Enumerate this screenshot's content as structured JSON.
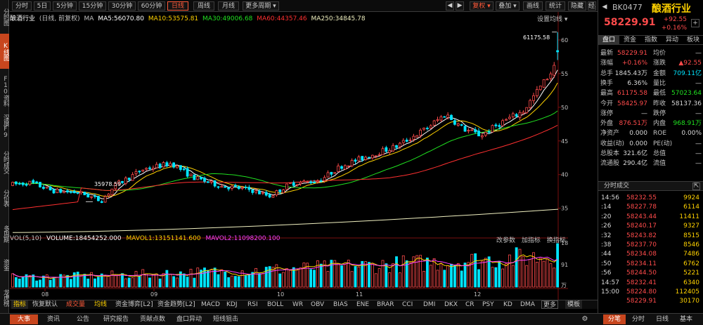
{
  "left_tabs": [
    {
      "label": "分时图",
      "active": false
    },
    {
      "label": "K线图",
      "active": true
    },
    {
      "label": "F10资料",
      "active": false
    },
    {
      "label": "深度F9",
      "active": false
    },
    {
      "label": "分时成交",
      "active": false
    },
    {
      "label": "分价表",
      "active": false
    },
    {
      "label": "多周期",
      "active": false
    },
    {
      "label": "资金",
      "active": false
    },
    {
      "label": "龙虎榜",
      "active": false
    }
  ],
  "toolbar": {
    "periods": [
      "分时",
      "5日",
      "5分钟",
      "15分钟",
      "30分钟",
      "60分钟",
      "日线",
      "周线",
      "月线",
      "更多周期 ▾"
    ],
    "active_period": "日线",
    "right_buttons": [
      "复权 ▾",
      "叠加 ▾",
      "画线",
      "统计",
      "隐藏",
      "经典"
    ]
  },
  "legend": {
    "name": "酿酒行业",
    "mode": "(日线, 前复权)",
    "ma_tag": "MA",
    "ma5": "MA5:56070.80",
    "ma10": "MA10:53575.81",
    "ma30": "MA30:49006.68",
    "ma60": "MA60:44357.46",
    "ma250": "MA250:34845.78",
    "settings": "设置均线 ▾"
  },
  "annotations": {
    "high": "61175.58",
    "low": "35978.59"
  },
  "volume_legend": {
    "label": "VOL(5,10)",
    "volume": "VOLUME:18454252.000",
    "mavol1": "MAVOL1:13151141.600",
    "mavol2": "MAVOL2:11098200.100",
    "tools": [
      "改参数",
      "加指标",
      "换指标"
    ]
  },
  "indicators": [
    "指标",
    "恢复默认",
    "成交量",
    "均线",
    "资金博弈[L2]",
    "资金趋势[L2]",
    "MACD",
    "KDJ",
    "RSI",
    "BOLL",
    "WR",
    "OBV",
    "BIAS",
    "ENE",
    "BRAR",
    "CCI",
    "DMI",
    "DKX",
    "CR",
    "PSY",
    "KD",
    "DMA",
    "更多",
    "模板"
  ],
  "bottom_tabs": [
    "大事",
    "资讯",
    "公告",
    "研究报告",
    "贡献点数",
    "盘口异动",
    "短线狙击"
  ],
  "right_bottom_tabs": [
    "分笔",
    "分时",
    "日线",
    "基本"
  ],
  "quote": {
    "code": "BK0477",
    "name": "酿酒行业",
    "price": "58229.91",
    "change": "+92.55",
    "change_pct": "+0.16%",
    "tabs": [
      "盘口",
      "资金",
      "指数",
      "异动",
      "板块"
    ],
    "rows": [
      [
        {
          "l": "最新",
          "v": "58229.91",
          "c": "up"
        },
        {
          "l": "均价",
          "v": "—",
          "c": "wh"
        }
      ],
      [
        {
          "l": "涨幅",
          "v": "+0.16%",
          "c": "up"
        },
        {
          "l": "涨跌",
          "v": "▲92.55",
          "c": "up"
        }
      ],
      [
        {
          "l": "总手",
          "v": "1845.43万",
          "c": "wh"
        },
        {
          "l": "金额",
          "v": "709.11亿",
          "c": "cy"
        }
      ],
      [
        {
          "l": "换手",
          "v": "6.36%",
          "c": "wh"
        },
        {
          "l": "量比",
          "v": "—",
          "c": "wh"
        }
      ],
      [
        {
          "l": "最高",
          "v": "61175.58",
          "c": "up"
        },
        {
          "l": "最低",
          "v": "57023.64",
          "c": "gr"
        }
      ],
      [
        {
          "l": "今开",
          "v": "58425.97",
          "c": "up"
        },
        {
          "l": "昨收",
          "v": "58137.36",
          "c": "wh"
        }
      ],
      [
        {
          "l": "涨停",
          "v": "—",
          "c": "wh"
        },
        {
          "l": "跌停",
          "v": "—",
          "c": "wh"
        }
      ],
      [
        {
          "l": "外盘",
          "v": "876.51万",
          "c": "up"
        },
        {
          "l": "内盘",
          "v": "968.91万",
          "c": "gr"
        }
      ],
      [
        {
          "l": "净资产",
          "v": "0.000",
          "c": "wh"
        },
        {
          "l": "ROE",
          "v": "0.00%",
          "c": "wh"
        }
      ],
      [
        {
          "l": "收益(动)",
          "v": "0.000",
          "c": "wh"
        },
        {
          "l": "PE(动)",
          "v": "—",
          "c": "wh"
        }
      ],
      [
        {
          "l": "总股本",
          "v": "321.6亿",
          "c": "wh"
        },
        {
          "l": "总值",
          "v": "—",
          "c": "wh"
        }
      ],
      [
        {
          "l": "流通股",
          "v": "290.4亿",
          "c": "wh"
        },
        {
          "l": "流值",
          "v": "—",
          "c": "wh"
        }
      ]
    ],
    "ticks_title": "分时成交",
    "ticks": [
      {
        "t": "14:56",
        "p": "58232.55",
        "v": "9924"
      },
      {
        "t": ":14",
        "p": "58227.78",
        "v": "6114"
      },
      {
        "t": ":20",
        "p": "58243.44",
        "v": "11411"
      },
      {
        "t": ":26",
        "p": "58240.17",
        "v": "9327"
      },
      {
        "t": ":32",
        "p": "58243.82",
        "v": "8515"
      },
      {
        "t": ":38",
        "p": "58237.70",
        "v": "8546"
      },
      {
        "t": ":44",
        "p": "58234.08",
        "v": "7486"
      },
      {
        "t": ":50",
        "p": "58234.11",
        "v": "6762"
      },
      {
        "t": ":56",
        "p": "58244.50",
        "v": "5221"
      },
      {
        "t": "14:57",
        "p": "58232.41",
        "v": "6340"
      },
      {
        "t": "15:00",
        "p": "58224.80",
        "v": "112405"
      },
      {
        "t": "",
        "p": "58229.91",
        "v": "30170"
      }
    ]
  },
  "chart_data": {
    "type": "candlestick",
    "y_axis_labels": [
      "60000.00",
      "55000.00",
      "50000.00",
      "45000.00",
      "40000.00",
      "35000.00"
    ],
    "ylim": [
      31000,
      62500
    ],
    "x_axis_labels": [
      "08",
      "09",
      "10",
      "11",
      "12"
    ],
    "volume_axis_labels": [
      "1845.00",
      "912.00",
      "万"
    ],
    "ma5_last": 56070.8,
    "ma10_last": 53575.81,
    "ma30_last": 49006.68,
    "ma60_last": 44357.46,
    "ma250_last": 34845.78,
    "low_point": 35978.59,
    "high_point": 61175.58
  }
}
